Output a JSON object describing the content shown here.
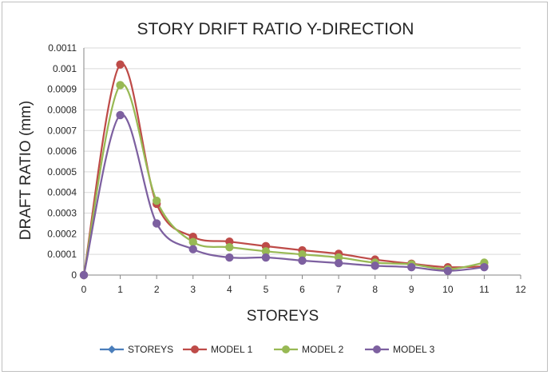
{
  "chart_data": {
    "type": "line",
    "title": "STORY DRIFT RATIO Y-DIRECTION",
    "xlabel": "STOREYS",
    "ylabel": "DRAFT RATIO (mm)",
    "xlim": [
      0,
      12
    ],
    "ylim": [
      0,
      0.0011
    ],
    "x_ticks": [
      "0",
      "1",
      "2",
      "3",
      "4",
      "5",
      "6",
      "7",
      "8",
      "9",
      "10",
      "11",
      "12"
    ],
    "y_ticks": [
      "0",
      "0.0001",
      "0.0002",
      "0.0003",
      "0.0004",
      "0.0005",
      "0.0006",
      "0.0007",
      "0.0008",
      "0.0009",
      "0.001",
      "0.0011"
    ],
    "grid": true,
    "legend_position": "bottom",
    "series": [
      {
        "name": "STOREYS",
        "color": "#4a7ebb",
        "x": [],
        "y": []
      },
      {
        "name": "MODEL 1",
        "color": "#be4b48",
        "x": [
          0,
          1,
          2,
          3,
          4,
          5,
          6,
          7,
          8,
          9,
          10,
          11
        ],
        "y": [
          0,
          0.00102,
          0.000345,
          0.000185,
          0.000162,
          0.00014,
          0.00012,
          0.000103,
          7.5e-05,
          5.5e-05,
          3.8e-05,
          4.2e-05
        ]
      },
      {
        "name": "MODEL 2",
        "color": "#98b954",
        "x": [
          0,
          1,
          2,
          3,
          4,
          5,
          6,
          7,
          8,
          9,
          10,
          11
        ],
        "y": [
          0,
          0.00092,
          0.00036,
          0.00016,
          0.000135,
          0.000115,
          0.0001,
          8.5e-05,
          6e-05,
          5.2e-05,
          2.8e-05,
          6e-05
        ]
      },
      {
        "name": "MODEL 3",
        "color": "#7d60a0",
        "x": [
          0,
          1,
          2,
          3,
          4,
          5,
          6,
          7,
          8,
          9,
          10,
          11
        ],
        "y": [
          0,
          0.000775,
          0.00025,
          0.000125,
          8.5e-05,
          8.5e-05,
          7e-05,
          5.8e-05,
          4.5e-05,
          3.8e-05,
          2e-05,
          3.8e-05
        ]
      }
    ]
  }
}
